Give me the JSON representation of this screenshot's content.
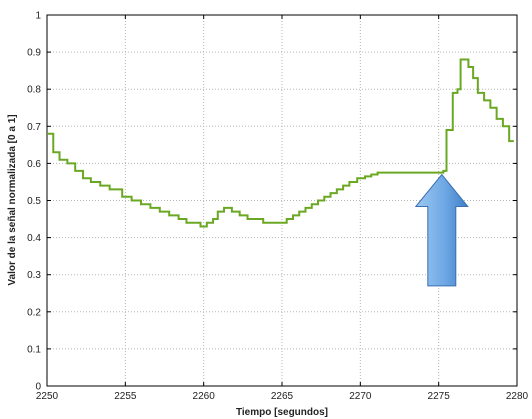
{
  "chart_data": {
    "type": "line",
    "title": "",
    "xlabel": "Tiempo [segundos]",
    "ylabel": "Valor de la señal normalizada [0 a 1]",
    "xlim": [
      2250,
      2280
    ],
    "ylim": [
      0,
      1
    ],
    "xticks": [
      2250,
      2255,
      2260,
      2265,
      2270,
      2275,
      2280
    ],
    "yticks": [
      0,
      0.1,
      0.2,
      0.3,
      0.4,
      0.5,
      0.6,
      0.7,
      0.8,
      0.9,
      1
    ],
    "grid": true,
    "line_color": "#6aa824",
    "series": [
      {
        "step": true,
        "x": [
          2250,
          2250.4,
          2250.8,
          2251.3,
          2251.8,
          2252.3,
          2252.8,
          2253.4,
          2254.0,
          2254.8,
          2255.4,
          2256.0,
          2256.6,
          2257.2,
          2257.8,
          2258.4,
          2258.9,
          2259.3,
          2259.8,
          2260.2,
          2260.6,
          2260.9,
          2261.3,
          2261.8,
          2262.3,
          2262.8,
          2263.3,
          2263.8,
          2264.3,
          2265.3,
          2265.7,
          2266.1,
          2266.5,
          2266.9,
          2267.3,
          2267.7,
          2268.1,
          2268.5,
          2268.9,
          2269.3,
          2269.8,
          2270.3,
          2270.7,
          2271.1,
          2271.6,
          2272.1,
          2275.3,
          2275.5,
          2275.9,
          2276.2,
          2276.4,
          2276.9,
          2277.2,
          2277.5,
          2277.9,
          2278.3,
          2278.7,
          2279.1,
          2279.5,
          2279.8
        ],
        "y": [
          0.68,
          0.63,
          0.61,
          0.6,
          0.58,
          0.56,
          0.55,
          0.54,
          0.53,
          0.51,
          0.5,
          0.49,
          0.48,
          0.47,
          0.46,
          0.45,
          0.44,
          0.44,
          0.43,
          0.44,
          0.45,
          0.47,
          0.48,
          0.47,
          0.46,
          0.45,
          0.45,
          0.44,
          0.44,
          0.45,
          0.46,
          0.47,
          0.48,
          0.49,
          0.5,
          0.51,
          0.52,
          0.53,
          0.54,
          0.55,
          0.56,
          0.565,
          0.57,
          0.575,
          0.575,
          0.575,
          0.58,
          0.69,
          0.79,
          0.8,
          0.88,
          0.86,
          0.83,
          0.79,
          0.77,
          0.75,
          0.72,
          0.7,
          0.66,
          0.66
        ]
      }
    ],
    "annotation": {
      "type": "arrow",
      "direction": "up",
      "color": "#7fb4e8",
      "x": 2275.2,
      "y_tail": 0.27,
      "y_head": 0.57
    }
  }
}
